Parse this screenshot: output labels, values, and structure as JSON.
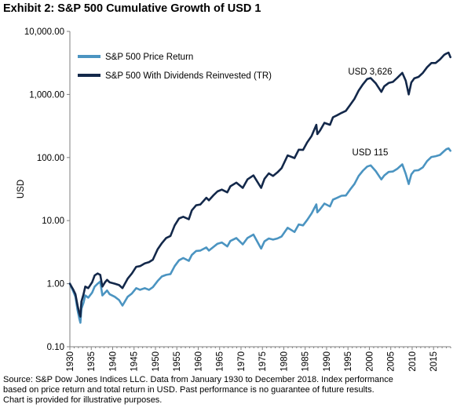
{
  "title": "Exhibit 2: S&P 500 Cumulative Growth of USD 1",
  "source_lines": [
    "Source: S&P Dow Jones Indices LLC.  Data from January 1930 to December 2018.  Index performance",
    "based on price return and total return in USD.  Past performance is no guarantee of future results.",
    "Chart is provided for illustrative purposes."
  ],
  "colors": {
    "price": "#4b94c1",
    "tr": "#13284a",
    "axis": "#7f7f7f"
  },
  "chart_data": {
    "type": "line",
    "ylabel": "USD",
    "xlabel": "",
    "yscale": "log",
    "ylim": [
      0.1,
      10000
    ],
    "xlim": [
      1930,
      2019
    ],
    "grid": false,
    "legend_position": "top-left",
    "y_tick_labels": [
      "0.10",
      "1.00",
      "10.00",
      "100.00",
      "1,000.00",
      "10,000.00"
    ],
    "x_tick_labels": [
      "1930",
      "1935",
      "1940",
      "1945",
      "1950",
      "1955",
      "1960",
      "1965",
      "1970",
      "1975",
      "1980",
      "1985",
      "1990",
      "1995",
      "2000",
      "2005",
      "2010",
      "2015"
    ],
    "annotations": [
      {
        "text": "USD 3,626",
        "series": "S&P 500 With Dividends Reinvested (TR)",
        "x": 2000,
        "y": 3626
      },
      {
        "text": "USD 115",
        "series": "S&P 500 Price Return",
        "x": 2000,
        "y": 115
      }
    ],
    "series": [
      {
        "name": "S&P 500 Price Return",
        "color": "#4b94c1",
        "x": [
          1930,
          1930.3,
          1930.8,
          1931.3,
          1931.8,
          1932.2,
          1932.45,
          1932.7,
          1933.2,
          1933.6,
          1934.3,
          1935.2,
          1935.8,
          1936.5,
          1937.1,
          1937.6,
          1938.2,
          1938.7,
          1939.3,
          1940.5,
          1941.5,
          1942.3,
          1943.5,
          1944.5,
          1945.5,
          1946.4,
          1947.5,
          1948.5,
          1949.4,
          1950.5,
          1951.5,
          1952.5,
          1953.5,
          1954.5,
          1955.5,
          1956.5,
          1957.8,
          1958.5,
          1959.5,
          1960.5,
          1961.9,
          1962.5,
          1963.5,
          1964.5,
          1965.5,
          1966.8,
          1967.5,
          1968.9,
          1970.4,
          1971.5,
          1972.9,
          1974.7,
          1975.5,
          1976.5,
          1977.5,
          1978.5,
          1979.5,
          1980.9,
          1982.5,
          1983.5,
          1984.5,
          1985.5,
          1986.5,
          1987.6,
          1987.85,
          1988.5,
          1989.5,
          1990.8,
          1991.5,
          1992.5,
          1993.5,
          1994.5,
          1995.5,
          1996.5,
          1997.5,
          1998.5,
          1999.5,
          2000.3,
          2001.5,
          2002.8,
          2003.5,
          2004.5,
          2005.5,
          2006.5,
          2007.7,
          2008.5,
          2009.2,
          2009.8,
          2010.5,
          2011.5,
          2012.5,
          2013.5,
          2014.5,
          2015.5,
          2016.5,
          2017.5,
          2018.0,
          2018.5,
          2018.95
        ],
        "values": [
          1.0,
          0.9,
          0.75,
          0.62,
          0.38,
          0.28,
          0.24,
          0.4,
          0.5,
          0.65,
          0.6,
          0.72,
          0.9,
          1.0,
          1.08,
          0.65,
          0.72,
          0.78,
          0.68,
          0.62,
          0.55,
          0.45,
          0.62,
          0.7,
          0.85,
          0.8,
          0.85,
          0.8,
          0.88,
          1.1,
          1.3,
          1.38,
          1.42,
          1.9,
          2.35,
          2.55,
          2.3,
          2.85,
          3.3,
          3.35,
          3.75,
          3.35,
          3.8,
          4.3,
          4.5,
          3.9,
          4.75,
          5.3,
          4.2,
          5.3,
          6.0,
          3.6,
          4.7,
          5.2,
          5.0,
          5.2,
          5.6,
          7.7,
          6.6,
          8.7,
          8.4,
          10.3,
          13.0,
          18.1,
          13.5,
          15.2,
          18.6,
          16.8,
          21.5,
          23.0,
          24.8,
          25.0,
          31.0,
          38.0,
          51.0,
          62.0,
          72.0,
          75.0,
          61.0,
          45.0,
          52.0,
          59.0,
          60.0,
          66.0,
          78.0,
          55.0,
          38.0,
          54.0,
          62.0,
          63.0,
          70.0,
          88.0,
          102.0,
          105.0,
          110.0,
          127.0,
          136.0,
          140.0,
          128.0
        ]
      },
      {
        "name": "S&P 500 With Dividends Reinvested (TR)",
        "color": "#13284a",
        "x": [
          1930,
          1930.3,
          1930.8,
          1931.3,
          1931.8,
          1932.2,
          1932.45,
          1932.7,
          1933.2,
          1933.6,
          1934.3,
          1935.2,
          1935.8,
          1936.5,
          1937.1,
          1937.6,
          1938.2,
          1938.7,
          1939.3,
          1940.5,
          1941.5,
          1942.3,
          1943.5,
          1944.5,
          1945.5,
          1946.4,
          1947.5,
          1948.5,
          1949.4,
          1950.5,
          1951.5,
          1952.5,
          1953.5,
          1954.5,
          1955.5,
          1956.5,
          1957.8,
          1958.5,
          1959.5,
          1960.5,
          1961.9,
          1962.5,
          1963.5,
          1964.5,
          1965.5,
          1966.8,
          1967.5,
          1968.9,
          1970.4,
          1971.5,
          1972.9,
          1974.7,
          1975.5,
          1976.5,
          1977.5,
          1978.5,
          1979.5,
          1980.9,
          1982.5,
          1983.5,
          1984.5,
          1985.5,
          1986.5,
          1987.6,
          1987.85,
          1988.5,
          1989.5,
          1990.8,
          1991.5,
          1992.5,
          1993.5,
          1994.5,
          1995.5,
          1996.5,
          1997.5,
          1998.5,
          1999.5,
          2000.3,
          2001.5,
          2002.8,
          2003.5,
          2004.5,
          2005.5,
          2006.5,
          2007.7,
          2008.5,
          2009.2,
          2009.8,
          2010.5,
          2011.5,
          2012.5,
          2013.5,
          2014.5,
          2015.5,
          2016.5,
          2017.5,
          2018.0,
          2018.5,
          2018.95
        ],
        "values": [
          1.0,
          0.92,
          0.8,
          0.68,
          0.45,
          0.34,
          0.3,
          0.52,
          0.68,
          0.9,
          0.85,
          1.05,
          1.35,
          1.45,
          1.38,
          0.9,
          1.05,
          1.15,
          1.05,
          1.0,
          0.95,
          0.85,
          1.2,
          1.45,
          1.85,
          1.9,
          2.1,
          2.2,
          2.4,
          3.5,
          4.4,
          5.3,
          5.7,
          8.4,
          10.8,
          11.5,
          10.5,
          14.5,
          17.5,
          18.0,
          23.0,
          21.0,
          25.0,
          29.0,
          31.0,
          28.0,
          35.0,
          40.0,
          33.0,
          45.0,
          52.0,
          33.0,
          46.0,
          56.0,
          51.0,
          58.0,
          68.0,
          108.0,
          98.0,
          133.0,
          132.0,
          175.0,
          220.0,
          330.0,
          235.0,
          270.0,
          355.0,
          330.0,
          435.0,
          470.0,
          510.0,
          550.0,
          680.0,
          850.0,
          1150.0,
          1450.0,
          1760.0,
          1820.0,
          1500.0,
          1100.0,
          1350.0,
          1520.0,
          1580.0,
          1830.0,
          2200.0,
          1650.0,
          1000.0,
          1550.0,
          1800.0,
          1900.0,
          2200.0,
          2700.0,
          3150.0,
          3150.0,
          3600.0,
          4250.0,
          4450.0,
          4600.0,
          3900.0
        ]
      }
    ]
  }
}
